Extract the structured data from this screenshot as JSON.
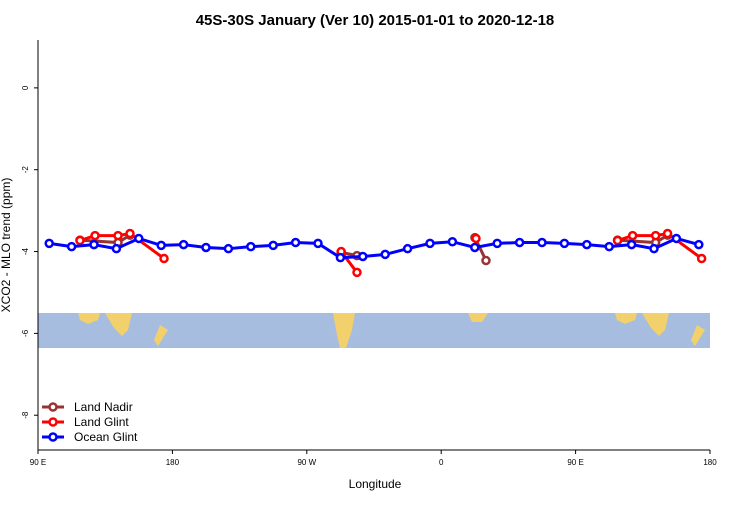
{
  "chart_data": {
    "type": "line",
    "title": "45S-30S January (Ver 10)   2015-01-01 to 2020-12-18",
    "xlabel": "Longitude",
    "ylabel": "XCO2 - MLO trend (ppm)",
    "xlim": [
      90,
      540
    ],
    "ylim": [
      -8.85,
      1.17
    ],
    "xticks": [
      {
        "value": 90,
        "label": "90 E"
      },
      180,
      {
        "value": 270,
        "label": "90 W"
      },
      {
        "value": 360,
        "label": "0"
      },
      {
        "value": 450,
        "label": "90 E"
      },
      {
        "value": 540,
        "label": "180"
      }
    ],
    "yticks": [
      0,
      -2,
      -4,
      -6,
      -8
    ],
    "legend": "bottom-left",
    "series": [
      {
        "name": "Land Nadir",
        "color": "#993333",
        "x": [
          118.1,
          143.6,
          151.6,
          null,
          293,
          303.6,
          null,
          382.6,
          390,
          null,
          478.1,
          503.6,
          511.6
        ],
        "values": [
          -3.72,
          -3.78,
          -3.6,
          null,
          -4.02,
          -4.1,
          null,
          -3.66,
          -4.22,
          null,
          -3.72,
          -3.78,
          -3.6
        ]
      },
      {
        "name": "Land Glint",
        "color": "#ff0000",
        "x": [
          118.1,
          128.2,
          143.6,
          151.6,
          174.4,
          null,
          293,
          303.6,
          null,
          383.3,
          null,
          478.1,
          488.2,
          503.6,
          511.6,
          534.4
        ],
        "values": [
          -3.73,
          -3.61,
          -3.61,
          -3.56,
          -4.17,
          null,
          -4.0,
          -4.51,
          null,
          -3.68,
          null,
          -3.73,
          -3.61,
          -3.61,
          -3.56,
          -4.17
        ]
      },
      {
        "name": "Ocean Glint",
        "color": "#0000ff",
        "x": [
          97.5,
          112.5,
          127.5,
          142.5,
          157.5,
          172.5,
          187.5,
          202.5,
          217.5,
          232.5,
          247.5,
          262.5,
          277.5,
          292.5,
          307.5,
          322.5,
          337.5,
          352.5,
          367.5,
          382.5,
          397.5,
          412.5,
          427.5,
          442.5,
          457.5,
          472.5,
          487.5,
          502.5,
          517.5,
          532.5
        ],
        "values": [
          -3.8,
          -3.88,
          -3.83,
          -3.93,
          -3.68,
          -3.85,
          -3.83,
          -3.9,
          -3.93,
          -3.88,
          -3.85,
          -3.78,
          -3.8,
          -4.15,
          -4.12,
          -4.07,
          -3.93,
          -3.8,
          -3.76,
          -3.9,
          -3.8,
          -3.78,
          -3.78,
          -3.8,
          -3.83,
          -3.88,
          -3.83,
          -3.93,
          -3.68,
          -3.83
        ]
      }
    ]
  }
}
